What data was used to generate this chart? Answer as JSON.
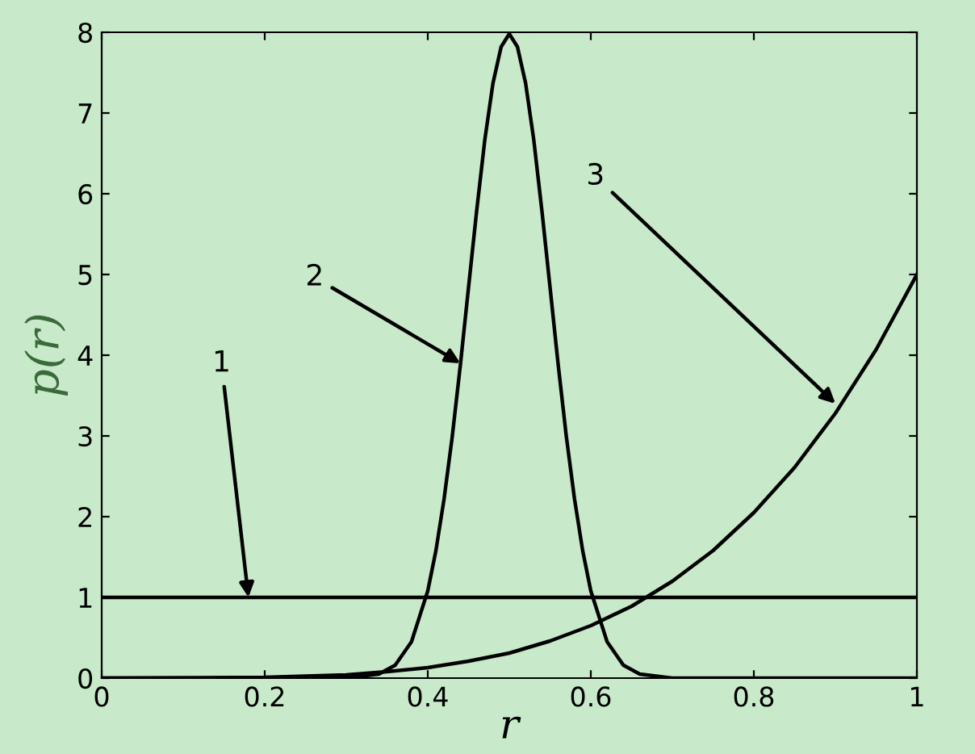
{
  "chart_data": {
    "type": "line",
    "xlabel": "r",
    "ylabel": "p(r)",
    "xlim": [
      0,
      1
    ],
    "ylim": [
      0,
      8
    ],
    "xticks": [
      0,
      0.2,
      0.4,
      0.6,
      0.8,
      1
    ],
    "yticks": [
      0,
      1,
      2,
      3,
      4,
      5,
      6,
      7,
      8
    ],
    "grid": false,
    "legend": false,
    "marker": "none",
    "line_style": "solid",
    "series": [
      {
        "color": "#000000",
        "x": [
          0,
          1
        ],
        "values": [
          1,
          1
        ]
      },
      {
        "color": "#000000",
        "x": [
          0,
          0.3,
          0.34,
          0.36,
          0.38,
          0.4,
          0.41,
          0.42,
          0.43,
          0.44,
          0.45,
          0.46,
          0.47,
          0.48,
          0.49,
          0.5,
          0.51,
          0.52,
          0.53,
          0.54,
          0.55,
          0.56,
          0.57,
          0.58,
          0.59,
          0.6,
          0.62,
          0.64,
          0.66,
          0.7,
          1
        ],
        "values": [
          0,
          0,
          0.05,
          0.16,
          0.45,
          1.08,
          1.58,
          2.22,
          2.99,
          3.88,
          4.84,
          5.79,
          6.67,
          7.37,
          7.82,
          7.98,
          7.82,
          7.37,
          6.67,
          5.79,
          4.84,
          3.88,
          2.99,
          2.22,
          1.58,
          1.08,
          0.45,
          0.16,
          0.05,
          0,
          0
        ]
      },
      {
        "color": "#000000",
        "x": [
          0,
          0.2,
          0.3,
          0.35,
          0.4,
          0.45,
          0.5,
          0.55,
          0.6,
          0.65,
          0.7,
          0.75,
          0.8,
          0.85,
          0.9,
          0.95,
          1
        ],
        "values": [
          0,
          0.01,
          0.04,
          0.08,
          0.13,
          0.21,
          0.31,
          0.46,
          0.65,
          0.89,
          1.2,
          1.58,
          2.05,
          2.61,
          3.28,
          4.07,
          5
        ]
      }
    ],
    "annotations": [
      {
        "text": "1",
        "x": 0.18,
        "y": 1
      },
      {
        "text": "2",
        "x": 0.44,
        "y": 3.9
      },
      {
        "text": "3",
        "x": 0.9,
        "y": 3.4
      }
    ]
  }
}
